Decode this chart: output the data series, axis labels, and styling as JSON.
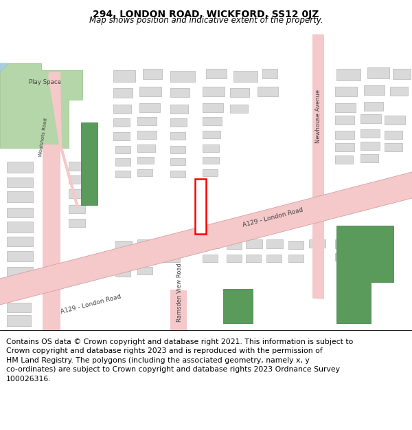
{
  "title": "294, LONDON ROAD, WICKFORD, SS12 0JZ",
  "subtitle": "Map shows position and indicative extent of the property.",
  "footer_line1": "Contains OS data © Crown copyright and database right 2021. This information is subject to",
  "footer_line2": "Crown copyright and database rights 2023 and is reproduced with the permission of",
  "footer_line3": "HM Land Registry. The polygons (including the associated geometry, namely x, y",
  "footer_line4": "co-ordinates) are subject to Crown copyright and database rights 2023 Ordnance Survey",
  "footer_line5": "100026316.",
  "map_bg": "#f2f0eb",
  "road_color": "#f5c8ca",
  "road_border": "#d4a0a2",
  "building_color": "#d9d9d9",
  "building_border": "#aaaaaa",
  "green_dark": "#5a9a5a",
  "green_light": "#b5d6a8",
  "plot_color": "#ff0000",
  "title_fontsize": 10,
  "subtitle_fontsize": 8.5,
  "footer_fontsize": 7.8,
  "label_fontsize": 6.0,
  "road_label_fontsize": 6.5
}
